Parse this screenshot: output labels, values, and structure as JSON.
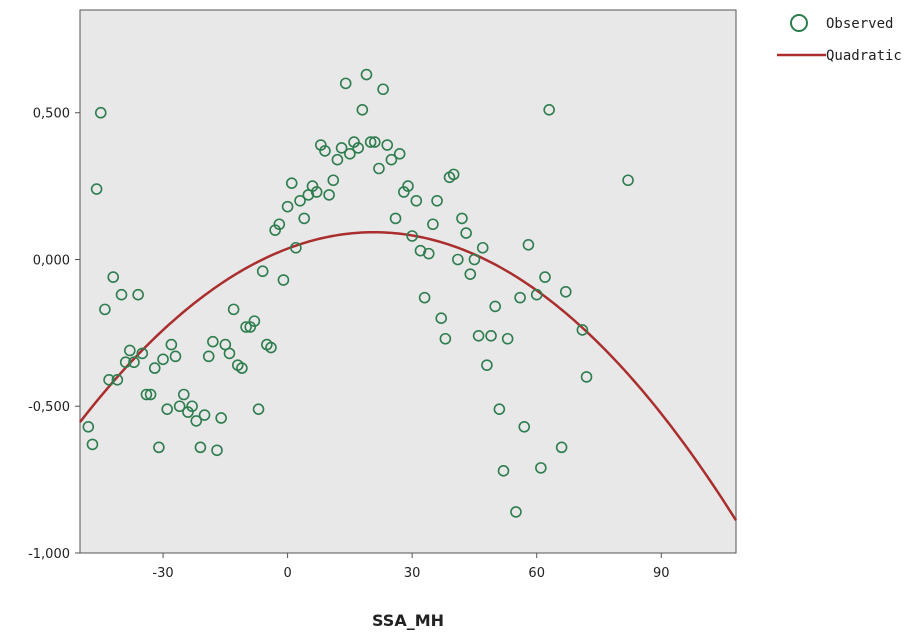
{
  "chart_data": {
    "type": "scatter",
    "title": "",
    "xlabel": "SSA_MH",
    "ylabel": "",
    "xlim": [
      -50,
      108
    ],
    "ylim": [
      -1.0,
      0.85
    ],
    "x_ticks": [
      -30,
      0,
      30,
      60,
      90
    ],
    "x_tick_labels": [
      "-30",
      "0",
      "30",
      "60",
      "90"
    ],
    "y_ticks": [
      0.5,
      0.0,
      -0.5,
      -1.0
    ],
    "y_tick_labels": [
      "0,500",
      "0,000",
      "-0,500",
      "-1,000"
    ],
    "grid": false,
    "background": "#e8e8e8",
    "legend": {
      "position": "top-right",
      "entries": [
        {
          "label": "Observed",
          "kind": "marker",
          "color": "#2e7d4f"
        },
        {
          "label": "Quadratic",
          "kind": "line",
          "color": "#aa2e2e"
        }
      ]
    },
    "series": [
      {
        "name": "Observed",
        "kind": "scatter",
        "color": "#2e7d4f",
        "points": [
          [
            -48,
            -0.57
          ],
          [
            -47,
            -0.63
          ],
          [
            -46,
            0.24
          ],
          [
            -45,
            0.5
          ],
          [
            -44,
            -0.17
          ],
          [
            -43,
            -0.41
          ],
          [
            -42,
            -0.06
          ],
          [
            -41,
            -0.41
          ],
          [
            -40,
            -0.12
          ],
          [
            -39,
            -0.35
          ],
          [
            -38,
            -0.31
          ],
          [
            -37,
            -0.35
          ],
          [
            -36,
            -0.12
          ],
          [
            -35,
            -0.32
          ],
          [
            -34,
            -0.46
          ],
          [
            -33,
            -0.46
          ],
          [
            -32,
            -0.37
          ],
          [
            -31,
            -0.64
          ],
          [
            -30,
            -0.34
          ],
          [
            -29,
            -0.51
          ],
          [
            -28,
            -0.29
          ],
          [
            -27,
            -0.33
          ],
          [
            -26,
            -0.5
          ],
          [
            -25,
            -0.46
          ],
          [
            -24,
            -0.52
          ],
          [
            -23,
            -0.5
          ],
          [
            -22,
            -0.55
          ],
          [
            -21,
            -0.64
          ],
          [
            -20,
            -0.53
          ],
          [
            -19,
            -0.33
          ],
          [
            -18,
            -0.28
          ],
          [
            -17,
            -0.65
          ],
          [
            -16,
            -0.54
          ],
          [
            -15,
            -0.29
          ],
          [
            -14,
            -0.32
          ],
          [
            -13,
            -0.17
          ],
          [
            -12,
            -0.36
          ],
          [
            -11,
            -0.37
          ],
          [
            -10,
            -0.23
          ],
          [
            -9,
            -0.23
          ],
          [
            -8,
            -0.21
          ],
          [
            -7,
            -0.51
          ],
          [
            -6,
            -0.04
          ],
          [
            -5,
            -0.29
          ],
          [
            -4,
            -0.3
          ],
          [
            -3,
            0.1
          ],
          [
            -2,
            0.12
          ],
          [
            -1,
            -0.07
          ],
          [
            0,
            0.18
          ],
          [
            1,
            0.26
          ],
          [
            2,
            0.04
          ],
          [
            3,
            0.2
          ],
          [
            4,
            0.14
          ],
          [
            5,
            0.22
          ],
          [
            6,
            0.25
          ],
          [
            7,
            0.23
          ],
          [
            8,
            0.39
          ],
          [
            9,
            0.37
          ],
          [
            10,
            0.22
          ],
          [
            11,
            0.27
          ],
          [
            12,
            0.34
          ],
          [
            13,
            0.38
          ],
          [
            14,
            0.6
          ],
          [
            15,
            0.36
          ],
          [
            16,
            0.4
          ],
          [
            17,
            0.38
          ],
          [
            18,
            0.51
          ],
          [
            19,
            0.63
          ],
          [
            20,
            0.4
          ],
          [
            21,
            0.4
          ],
          [
            22,
            0.31
          ],
          [
            23,
            0.58
          ],
          [
            24,
            0.39
          ],
          [
            25,
            0.34
          ],
          [
            26,
            0.14
          ],
          [
            27,
            0.36
          ],
          [
            28,
            0.23
          ],
          [
            29,
            0.25
          ],
          [
            30,
            0.08
          ],
          [
            31,
            0.2
          ],
          [
            32,
            0.03
          ],
          [
            33,
            -0.13
          ],
          [
            34,
            0.02
          ],
          [
            35,
            0.12
          ],
          [
            36,
            0.2
          ],
          [
            37,
            -0.2
          ],
          [
            38,
            -0.27
          ],
          [
            39,
            0.28
          ],
          [
            40,
            0.29
          ],
          [
            41,
            0.0
          ],
          [
            42,
            0.14
          ],
          [
            43,
            0.09
          ],
          [
            44,
            -0.05
          ],
          [
            45,
            0.0
          ],
          [
            46,
            -0.26
          ],
          [
            47,
            0.04
          ],
          [
            48,
            -0.36
          ],
          [
            49,
            -0.26
          ],
          [
            50,
            -0.16
          ],
          [
            51,
            -0.51
          ],
          [
            52,
            -0.72
          ],
          [
            53,
            -0.27
          ],
          [
            55,
            -0.86
          ],
          [
            56,
            -0.13
          ],
          [
            57,
            -0.57
          ],
          [
            58,
            0.05
          ],
          [
            60,
            -0.12
          ],
          [
            61,
            -0.71
          ],
          [
            62,
            -0.06
          ],
          [
            63,
            0.51
          ],
          [
            66,
            -0.64
          ],
          [
            67,
            -0.11
          ],
          [
            71,
            -0.24
          ],
          [
            72,
            -0.4
          ],
          [
            82,
            0.27
          ]
        ]
      },
      {
        "name": "Quadratic",
        "kind": "line",
        "color": "#aa2e2e",
        "equation": "y = a + b*x + c*x^2",
        "coefficients": {
          "a": 0.037,
          "b": 0.00537,
          "c": -0.0001291
        }
      }
    ]
  }
}
